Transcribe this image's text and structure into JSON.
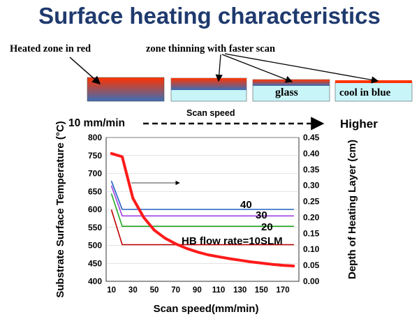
{
  "slide": {
    "title": "Surface heating characteristics",
    "label_heated": "Heated zone in red",
    "label_thinning": "zone thinning with faster scan",
    "box_glass": "glass",
    "box_cool": "cool in blue",
    "scan_speed_caption": "Scan speed",
    "arrow_left": "10 mm/min",
    "arrow_right": "Higher"
  },
  "colors": {
    "title": "#1f3a6e",
    "heated": "#ff3300",
    "cool": "#3b6fb6",
    "glass": "#c8f5f8",
    "curve": "#ff1a1a",
    "flow10": "#c00000",
    "flow20": "#22aa22",
    "flow30": "#a040e0",
    "flow40": "#2060c0"
  },
  "chart_data": {
    "type": "line",
    "xlabel": "Scan speed(mm/min)",
    "ylabel_left": "Substrate Surface Temperature (°C)",
    "ylabel_right": "Depth of Heating Layer (cm)",
    "x_ticks": [
      10,
      30,
      50,
      70,
      90,
      110,
      130,
      150,
      170
    ],
    "xlim": [
      5,
      185
    ],
    "ylim_left": [
      400,
      800
    ],
    "y_ticks_left": [
      400,
      450,
      500,
      550,
      600,
      650,
      700,
      750,
      800
    ],
    "ylim_right": [
      0,
      0.45
    ],
    "y_ticks_right": [
      "0.00",
      "0.05",
      "0.10",
      "0.15",
      "0.20",
      "0.25",
      "0.30",
      "0.35",
      "0.40",
      "0.45"
    ],
    "annotation": "HB flow rate=10SLM",
    "series": [
      {
        "name": "40",
        "axis": "left",
        "color": "#2060c0",
        "x": [
          10,
          20,
          180
        ],
        "y": [
          678,
          600,
          600
        ]
      },
      {
        "name": "30",
        "axis": "left",
        "color": "#a040e0",
        "x": [
          10,
          20,
          180
        ],
        "y": [
          665,
          582,
          582
        ]
      },
      {
        "name": "20",
        "axis": "left",
        "color": "#22aa22",
        "x": [
          10,
          20,
          180
        ],
        "y": [
          643,
          553,
          553
        ]
      },
      {
        "name": "",
        "axis": "left",
        "color": "#c00000",
        "x": [
          10,
          20,
          180
        ],
        "y": [
          598,
          502,
          502
        ]
      },
      {
        "name": "",
        "axis": "right",
        "color": "#ff1a1a",
        "x": [
          10,
          20,
          30,
          40,
          50,
          60,
          70,
          80,
          90,
          100,
          110,
          120,
          130,
          140,
          150,
          160,
          170,
          180
        ],
        "y": [
          0.4,
          0.39,
          0.26,
          0.2,
          0.16,
          0.135,
          0.117,
          0.103,
          0.092,
          0.083,
          0.077,
          0.071,
          0.066,
          0.061,
          0.057,
          0.053,
          0.05,
          0.048
        ]
      }
    ]
  }
}
